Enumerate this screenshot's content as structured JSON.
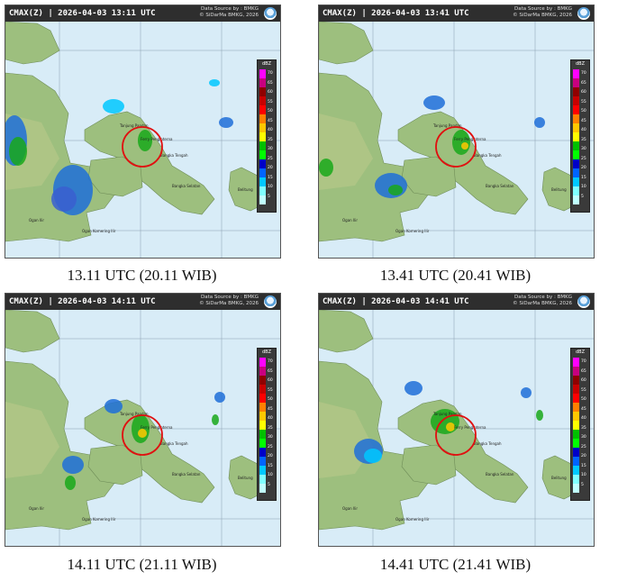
{
  "panels": [
    {
      "header": "CMAX(Z) | 2026-04-03 13:11 UTC",
      "caption": "13.11 UTC (20.11 WIB)"
    },
    {
      "header": "CMAX(Z) | 2026-04-03 13:41 UTC",
      "caption": "13.41 UTC (20.41 WIB)"
    },
    {
      "header": "CMAX(Z) | 2026-04-03 14:11 UTC",
      "caption": "14.11 UTC (21.11 WIB)"
    },
    {
      "header": "CMAX(Z) | 2026-04-03 14:41 UTC",
      "caption": "14.41 UTC (21.41 WIB)"
    }
  ],
  "source_line1": "Data Source by : BMKG",
  "source_line2": "© SiDarMa BMKG, 2026",
  "legend": {
    "unit": "dBZ",
    "ticks": [
      "70",
      "65",
      "60",
      "55",
      "50",
      "45",
      "40",
      "35",
      "30",
      "25",
      "20",
      "15",
      "10",
      "5"
    ],
    "colors": [
      "#ff00ff",
      "#c80080",
      "#900000",
      "#c80000",
      "#ff0000",
      "#ff8000",
      "#ffc800",
      "#ffff00",
      "#00c000",
      "#00ff00",
      "#0000c8",
      "#0064ff",
      "#00c8ff",
      "#80ffff",
      "#c0ffff"
    ]
  },
  "place_labels": {
    "a": "Tanjung Pandan",
    "b": "Ferry Penginterna",
    "c": "Bangka Tengah",
    "d": "Bangka Selatan",
    "e": "Belitung",
    "f": "Ogan Ilir",
    "g": "Ogan Komering Ilir"
  }
}
